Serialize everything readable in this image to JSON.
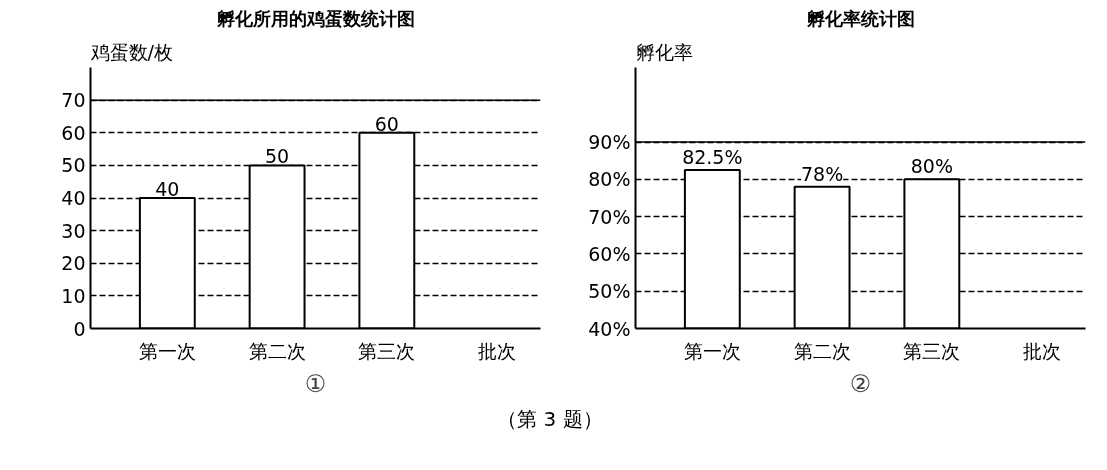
{
  "chart_data": [
    {
      "type": "bar",
      "title": "孵化所用的鸡蛋数统计图",
      "ylabel": "鸡蛋数/枚",
      "xlabel": "批次",
      "categories": [
        "第一次",
        "第二次",
        "第三次"
      ],
      "values": [
        40,
        50,
        60
      ],
      "color": "#ffffff",
      "data_labels": true,
      "ylim": [
        0,
        80
      ],
      "yticks": [
        0,
        10,
        20,
        30,
        40,
        50,
        60,
        70
      ],
      "grid": "y",
      "ref_lines": [
        {
          "axis": "y",
          "value": 70,
          "line_style": "solid"
        }
      ],
      "annotations": [
        "①"
      ]
    },
    {
      "type": "bar",
      "title": "孵化率统计图",
      "ylabel": "孵化率",
      "xlabel": "批次",
      "categories": [
        "第一次",
        "第二次",
        "第三次"
      ],
      "values": [
        82.5,
        78,
        80
      ],
      "value_labels": [
        "82.5%",
        "78%",
        "80%"
      ],
      "color": "#ffffff",
      "ylim": [
        40,
        110
      ],
      "yticks": [
        {
          "value": 40,
          "label": "40%"
        },
        {
          "value": 50,
          "label": "50%"
        },
        {
          "value": 60,
          "label": "60%"
        },
        {
          "value": 70,
          "label": "70%"
        },
        {
          "value": 80,
          "label": "80%"
        },
        {
          "value": 90,
          "label": "90%"
        }
      ],
      "grid": "y",
      "ref_lines": [
        {
          "axis": "y",
          "value": 90,
          "line_style": "solid"
        }
      ],
      "annotations": [
        "②",
        "（第 3 题）"
      ]
    }
  ]
}
